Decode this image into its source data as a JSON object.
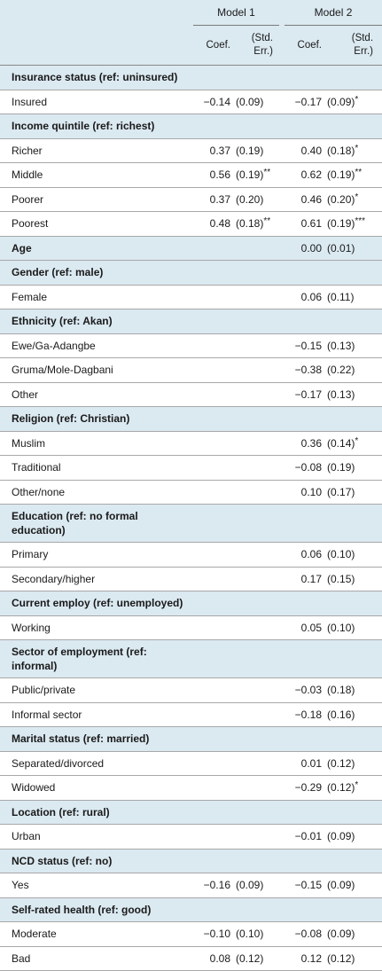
{
  "header": {
    "model1": "Model 1",
    "model2": "Model 2",
    "coef": "Coef.",
    "se_line1": "(Std.",
    "se_line2": "Err.)"
  },
  "rows": [
    {
      "type": "section",
      "label": "Insurance status (ref: uninsured)"
    },
    {
      "type": "data",
      "label": "Insured",
      "m1c": "−0.14",
      "m1s": "(0.09)",
      "m1g": "",
      "m2c": "−0.17",
      "m2s": "(0.09)",
      "m2g": "*"
    },
    {
      "type": "section",
      "label": "Income quintile (ref: richest)"
    },
    {
      "type": "data",
      "label": "Richer",
      "m1c": "0.37",
      "m1s": "(0.19)",
      "m1g": "",
      "m2c": "0.40",
      "m2s": "(0.18)",
      "m2g": "*"
    },
    {
      "type": "data",
      "label": "Middle",
      "m1c": "0.56",
      "m1s": "(0.19)",
      "m1g": "**",
      "m2c": "0.62",
      "m2s": "(0.19)",
      "m2g": "**"
    },
    {
      "type": "data",
      "label": "Poorer",
      "m1c": "0.37",
      "m1s": "(0.20)",
      "m1g": "",
      "m2c": "0.46",
      "m2s": "(0.20)",
      "m2g": "*"
    },
    {
      "type": "data",
      "label": "Poorest",
      "m1c": "0.48",
      "m1s": "(0.18)",
      "m1g": "**",
      "m2c": "0.61",
      "m2s": "(0.19)",
      "m2g": "***"
    },
    {
      "type": "section",
      "label": "Age",
      "m1c": "",
      "m1s": "",
      "m1g": "",
      "m2c": "0.00",
      "m2s": "(0.01)",
      "m2g": ""
    },
    {
      "type": "section",
      "label": "Gender (ref: male)"
    },
    {
      "type": "data",
      "label": "Female",
      "m1c": "",
      "m1s": "",
      "m1g": "",
      "m2c": "0.06",
      "m2s": "(0.11)",
      "m2g": ""
    },
    {
      "type": "section",
      "label": "Ethnicity (ref: Akan)"
    },
    {
      "type": "data",
      "label": "Ewe/Ga-Adangbe",
      "m1c": "",
      "m1s": "",
      "m1g": "",
      "m2c": "−0.15",
      "m2s": "(0.13)",
      "m2g": ""
    },
    {
      "type": "data",
      "label": "Gruma/Mole-Dagbani",
      "m1c": "",
      "m1s": "",
      "m1g": "",
      "m2c": "−0.38",
      "m2s": "(0.22)",
      "m2g": ""
    },
    {
      "type": "data",
      "label": "Other",
      "m1c": "",
      "m1s": "",
      "m1g": "",
      "m2c": "−0.17",
      "m2s": "(0.13)",
      "m2g": ""
    },
    {
      "type": "section",
      "label": "Religion (ref: Christian)"
    },
    {
      "type": "data",
      "label": "Muslim",
      "m1c": "",
      "m1s": "",
      "m1g": "",
      "m2c": "0.36",
      "m2s": "(0.14)",
      "m2g": "*"
    },
    {
      "type": "data",
      "label": "Traditional",
      "m1c": "",
      "m1s": "",
      "m1g": "",
      "m2c": "−0.08",
      "m2s": "(0.19)",
      "m2g": ""
    },
    {
      "type": "data",
      "label": "Other/none",
      "m1c": "",
      "m1s": "",
      "m1g": "",
      "m2c": "0.10",
      "m2s": "(0.17)",
      "m2g": ""
    },
    {
      "type": "section2",
      "label": "Education (ref: no formal education)"
    },
    {
      "type": "data",
      "label": "Primary",
      "m1c": "",
      "m1s": "",
      "m1g": "",
      "m2c": "0.06",
      "m2s": "(0.10)",
      "m2g": ""
    },
    {
      "type": "data",
      "label": "Secondary/higher",
      "m1c": "",
      "m1s": "",
      "m1g": "",
      "m2c": "0.17",
      "m2s": "(0.15)",
      "m2g": ""
    },
    {
      "type": "section",
      "label": "Current employ (ref: unemployed)"
    },
    {
      "type": "data",
      "label": "Working",
      "m1c": "",
      "m1s": "",
      "m1g": "",
      "m2c": "0.05",
      "m2s": "(0.10)",
      "m2g": ""
    },
    {
      "type": "section2",
      "label": "Sector of employment (ref: informal)"
    },
    {
      "type": "data",
      "label": "Public/private",
      "m1c": "",
      "m1s": "",
      "m1g": "",
      "m2c": "−0.03",
      "m2s": "(0.18)",
      "m2g": ""
    },
    {
      "type": "data",
      "label": "Informal sector",
      "m1c": "",
      "m1s": "",
      "m1g": "",
      "m2c": "−0.18",
      "m2s": "(0.16)",
      "m2g": ""
    },
    {
      "type": "section",
      "label": "Marital status (ref: married)"
    },
    {
      "type": "data",
      "label": "Separated/divorced",
      "m1c": "",
      "m1s": "",
      "m1g": "",
      "m2c": "0.01",
      "m2s": "(0.12)",
      "m2g": ""
    },
    {
      "type": "data",
      "label": "Widowed",
      "m1c": "",
      "m1s": "",
      "m1g": "",
      "m2c": "−0.29",
      "m2s": "(0.12)",
      "m2g": "*"
    },
    {
      "type": "section",
      "label": "Location (ref: rural)"
    },
    {
      "type": "data",
      "label": "Urban",
      "m1c": "",
      "m1s": "",
      "m1g": "",
      "m2c": "−0.01",
      "m2s": "(0.09)",
      "m2g": ""
    },
    {
      "type": "section",
      "label": "NCD status (ref: no)"
    },
    {
      "type": "data",
      "label": "Yes",
      "m1c": "−0.16",
      "m1s": "(0.09)",
      "m1g": "",
      "m2c": "−0.15",
      "m2s": "(0.09)",
      "m2g": ""
    },
    {
      "type": "section",
      "label": "Self-rated health (ref: good)"
    },
    {
      "type": "data",
      "label": "Moderate",
      "m1c": "−0.10",
      "m1s": "(0.10)",
      "m1g": "",
      "m2c": "−0.08",
      "m2s": "(0.09)",
      "m2g": ""
    },
    {
      "type": "data",
      "label": "Bad",
      "m1c": "0.08",
      "m1s": "(0.12)",
      "m1g": "",
      "m2c": "0.12",
      "m2s": "(0.12)",
      "m2g": ""
    }
  ]
}
